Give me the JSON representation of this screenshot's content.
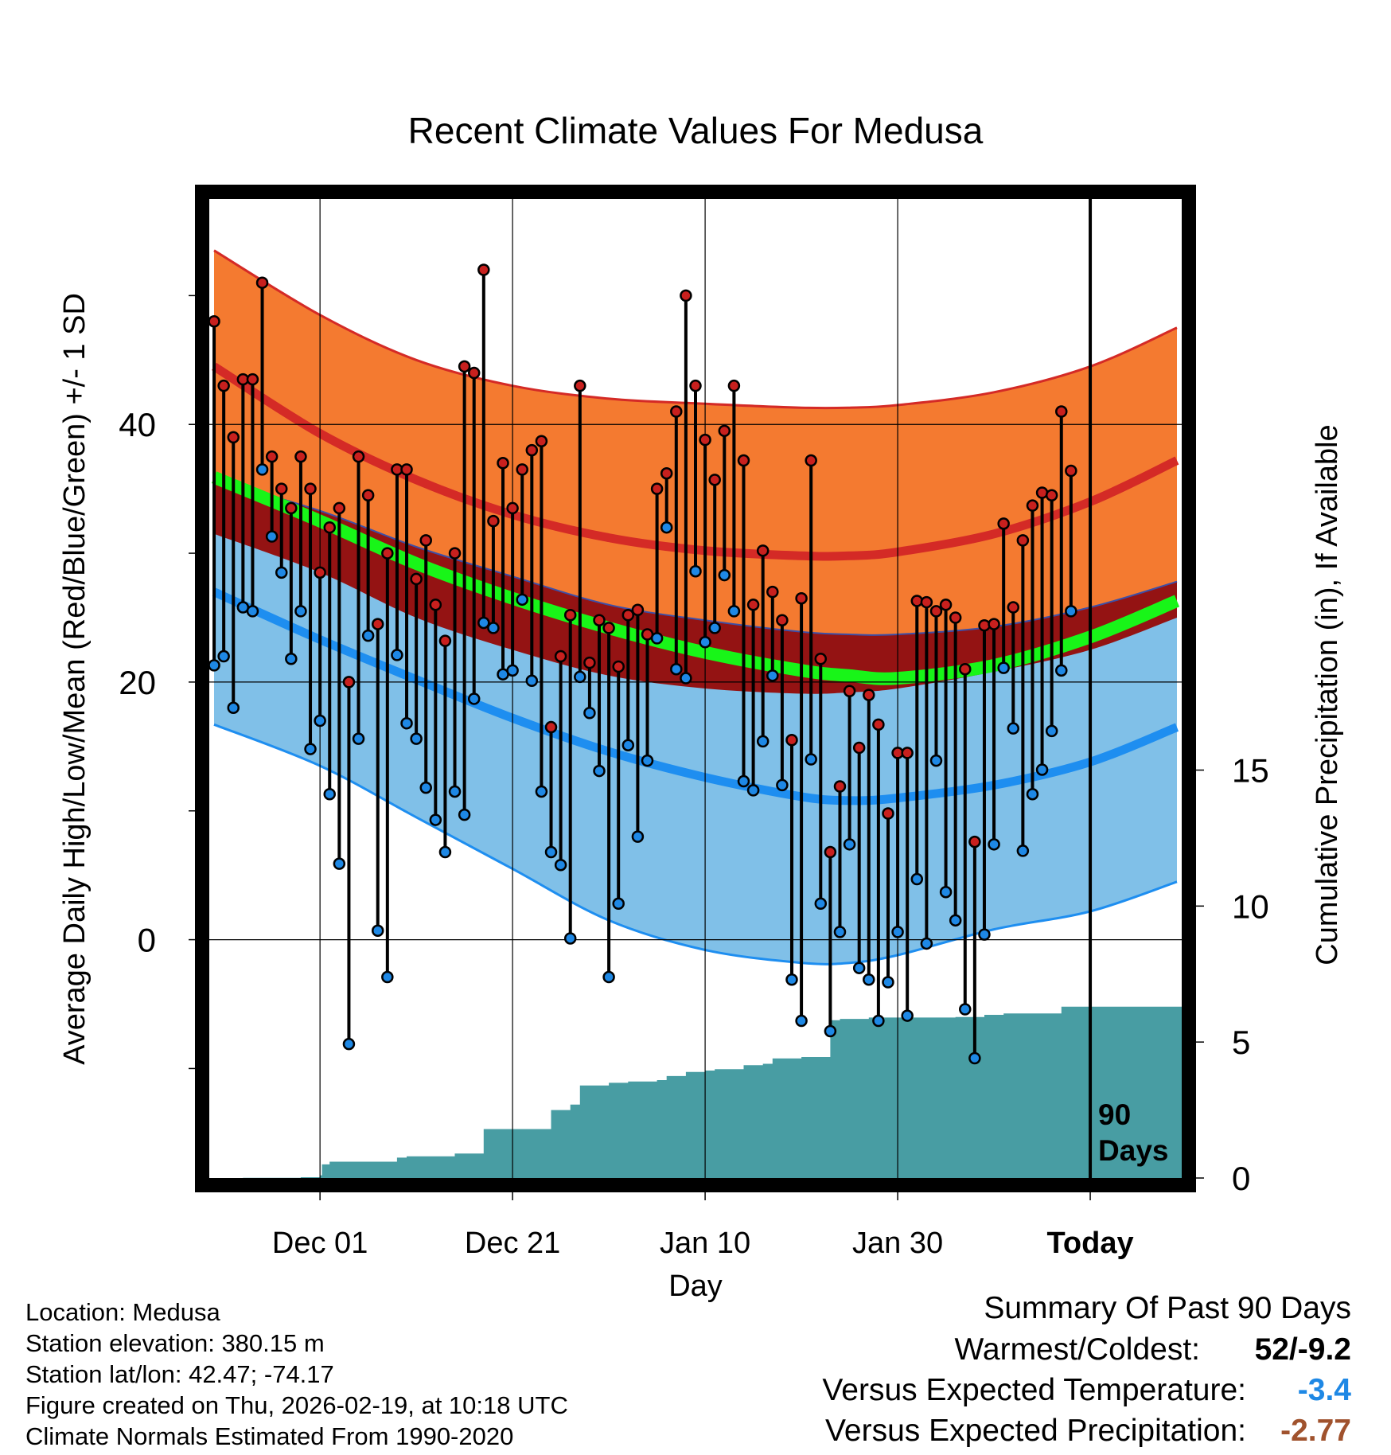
{
  "chart_data": {
    "type": "line",
    "title": "Recent Climate Values For Medusa",
    "xlabel": "Day",
    "ylabel": "Average Daily High/Low/Mean (Red/Blue/Green) +/- 1 SD",
    "ylabel_right": "Cumulative Precipitation (in), If Available",
    "xlim": [
      -11.5,
      89.5
    ],
    "ylim": [
      -18.5,
      57.5
    ],
    "y2lim": [
      0,
      36
    ],
    "x_ticks": [
      {
        "day": 0,
        "label": "Dec 01"
      },
      {
        "day": 20,
        "label": "Dec 21"
      },
      {
        "day": 40,
        "label": "Jan 10"
      },
      {
        "day": 60,
        "label": "Jan 30"
      },
      {
        "day": 80,
        "label": "Today"
      }
    ],
    "y_ticks": [
      0,
      20,
      40
    ],
    "y_minor_ticks": [
      -10,
      10,
      30,
      50
    ],
    "y2_ticks": [
      0,
      5,
      10,
      15
    ],
    "today_line": {
      "day": 80,
      "label_line1": "90",
      "label_line2": "Days"
    },
    "colors": {
      "high_band": "#f47a30",
      "high_line": "#d42a26",
      "mean_band": "#941313",
      "mean_line": "#18f518",
      "low_band": "#80c0e8",
      "low_line": "#1e8ef0",
      "precip": "#489da3",
      "high_marker": "#c8201e",
      "low_marker": "#1e88e5",
      "frame": "#000000"
    },
    "normals": {
      "day": [
        -11,
        0,
        10,
        20,
        30,
        40,
        50,
        55,
        60,
        70,
        80,
        89
      ],
      "high_mean": [
        44.5,
        39.3,
        35.7,
        33.0,
        31.2,
        30.2,
        29.8,
        29.8,
        30.1,
        31.5,
        34.0,
        37.2
      ],
      "high_sd_upper": [
        53.5,
        48.5,
        45.0,
        43.0,
        42.0,
        41.6,
        41.3,
        41.3,
        41.5,
        42.5,
        44.5,
        47.5
      ],
      "high_sd_lower": [
        35.7,
        33.3,
        30.5,
        28.2,
        26.0,
        24.8,
        23.9,
        23.7,
        23.7,
        24.3,
        25.8,
        27.8
      ],
      "mean_mean": [
        35.9,
        32.5,
        29.2,
        26.5,
        24.2,
        22.3,
        20.9,
        20.5,
        20.3,
        21.3,
        23.5,
        26.3
      ],
      "mean_band_lower": [
        31.5,
        28.5,
        25.0,
        22.5,
        20.5,
        19.5,
        19.1,
        19.2,
        19.5,
        20.8,
        22.5,
        25.0
      ],
      "low_mean": [
        27.0,
        23.3,
        20.2,
        17.2,
        14.6,
        12.6,
        11.1,
        10.8,
        11.0,
        12.0,
        13.8,
        16.5
      ],
      "low_sd_lower": [
        16.7,
        13.5,
        9.5,
        5.5,
        1.5,
        -0.8,
        -1.8,
        -1.8,
        -1.2,
        0.8,
        2.2,
        4.5
      ]
    },
    "daily": {
      "day_start": -11,
      "high": [
        48,
        43,
        39,
        43.5,
        43.5,
        51,
        37.5,
        35,
        33.5,
        37.5,
        35,
        28.5,
        32,
        33.5,
        20,
        37.5,
        34.5,
        24.5,
        30,
        36.5,
        36.5,
        28,
        31,
        26,
        23.2,
        30,
        44.5,
        44,
        52,
        32.5,
        37,
        33.5,
        36.5,
        38,
        38.7,
        16.5,
        22,
        25.2,
        43,
        21.5,
        24.8,
        24.2,
        21.2,
        25.2,
        25.6,
        23.7,
        35,
        36.2,
        41,
        50,
        43,
        38.8,
        35.7,
        39.5,
        43,
        37.2,
        26,
        30.2,
        27,
        24.8,
        15.5,
        26.5,
        37.2,
        21.8,
        6.8,
        11.9,
        19.3,
        14.9,
        19,
        16.7,
        9.8,
        14.5,
        14.5,
        26.3,
        26.2,
        25.5,
        26,
        25,
        21,
        7.6,
        24.4,
        24.5,
        32.3,
        25.8,
        31,
        33.7,
        34.7,
        34.5,
        41,
        36.4
      ],
      "low": [
        21.3,
        22,
        18,
        25.8,
        25.5,
        36.5,
        31.3,
        28.5,
        21.8,
        25.5,
        14.8,
        17,
        11.3,
        5.9,
        -8.1,
        15.6,
        23.6,
        0.7,
        -2.9,
        22.1,
        16.8,
        15.6,
        11.8,
        9.3,
        6.8,
        11.5,
        9.7,
        18.7,
        24.6,
        24.2,
        20.6,
        20.9,
        26.4,
        20.1,
        11.5,
        6.8,
        5.8,
        0.1,
        20.4,
        17.6,
        13.1,
        -2.9,
        2.8,
        15.1,
        8,
        13.9,
        23.4,
        32,
        21,
        20.3,
        28.6,
        23.1,
        24.2,
        28.3,
        25.5,
        12.3,
        11.6,
        15.4,
        20.5,
        12,
        -3.1,
        -6.3,
        14,
        2.8,
        -7.1,
        0.6,
        7.4,
        -2.2,
        -3.1,
        -6.3,
        -3.3,
        0.6,
        -5.9,
        4.7,
        -0.3,
        13.9,
        3.7,
        1.5,
        -5.4,
        -9.2,
        0.4,
        7.4,
        21.1,
        16.4,
        6.9,
        11.3,
        13.2,
        16.2,
        20.9,
        25.5
      ]
    },
    "precipitation": {
      "day": [
        -11,
        -8,
        -2,
        0,
        0.2,
        1,
        5,
        8,
        9,
        14,
        16,
        17,
        18,
        23,
        24,
        26,
        27,
        28,
        30,
        32,
        35,
        36,
        37,
        38,
        40,
        41,
        44,
        46,
        47,
        50,
        53,
        54,
        56,
        57,
        60,
        63,
        66,
        69,
        70,
        71,
        72,
        75,
        76,
        77,
        78,
        79,
        80,
        89
      ],
      "cumulative": [
        0,
        0.01,
        0.03,
        0.1,
        0.5,
        0.6,
        0.6,
        0.75,
        0.8,
        0.9,
        0.9,
        1.8,
        1.8,
        1.8,
        2.5,
        2.7,
        3.4,
        3.4,
        3.5,
        3.55,
        3.6,
        3.75,
        3.75,
        3.9,
        3.95,
        4.0,
        4.15,
        4.2,
        4.4,
        4.45,
        5.8,
        5.85,
        5.85,
        5.9,
        5.9,
        5.9,
        5.92,
        6.0,
        6.0,
        6.05,
        6.05,
        6.05,
        6.05,
        6.3,
        6.3,
        6.3,
        6.3,
        6.3
      ]
    }
  },
  "footer": {
    "location": "Location: Medusa",
    "elevation": "Station elevation: 380.15 m",
    "latlon": "Station lat/lon: 42.47; -74.17",
    "created": "Figure created on Thu, 2026-02-19, at 10:18 UTC",
    "normals": "Climate Normals Estimated From 1990-2020"
  },
  "summary": {
    "heading": "Summary Of Past 90 Days",
    "warmest_label": "Warmest/Coldest:",
    "warmest_value": "52/-9.2",
    "temp_label": "Versus Expected Temperature:",
    "temp_value": "-3.4",
    "temp_color": "#1e88e5",
    "precip_label": "Versus Expected Precipitation:",
    "precip_value": "-2.77",
    "precip_color": "#a0522d"
  }
}
